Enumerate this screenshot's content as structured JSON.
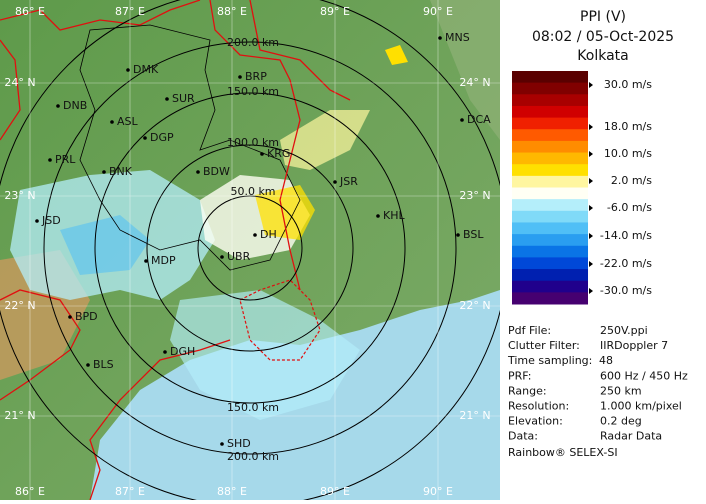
{
  "header": {
    "title": "PPI (V)",
    "time": "08:02 / 05-Oct-2025",
    "station": "Kolkata"
  },
  "legend": {
    "labels": [
      "30.0 m/s",
      "18.0 m/s",
      "10.0 m/s",
      "2.0 m/s",
      "-6.0 m/s",
      "-14.0 m/s",
      "-22.0 m/s",
      "-30.0 m/s"
    ],
    "colors": [
      "#5a0000",
      "#800000",
      "#a80000",
      "#d00000",
      "#f02000",
      "#ff5a00",
      "#ff8c00",
      "#ffb800",
      "#ffe000",
      "#fff6a0",
      "#fffff4",
      "#b4eefa",
      "#80daf8",
      "#50bff6",
      "#2a9ef0",
      "#0a74e6",
      "#0048d8",
      "#0020b0",
      "#20008c",
      "#460070"
    ]
  },
  "info": [
    [
      "Pdf File:",
      "250V.ppi"
    ],
    [
      "Clutter Filter:",
      "IIRDoppler 7"
    ],
    [
      "Time sampling:",
      "48"
    ],
    [
      "PRF:",
      "600 Hz / 450 Hz"
    ],
    [
      "Range:",
      "250 km"
    ],
    [
      "Resolution:",
      "1.000 km/pixel"
    ],
    [
      "Elevation:",
      "0.2 deg"
    ],
    [
      "Data:",
      "Radar Data"
    ]
  ],
  "footer": "Rainbow® SELEX-SI",
  "map": {
    "longitudes": [
      "86° E",
      "87° E",
      "88° E",
      "89° E",
      "90° E"
    ],
    "latitudes": [
      "24° N",
      "23° N",
      "22° N",
      "21° N"
    ],
    "ranges": [
      "200.0 km",
      "150.0 km",
      "100.0 km",
      "50.0 km",
      "150.0 km",
      "200.0 km"
    ],
    "cities": [
      "MNS",
      "DMK",
      "BRP",
      "SUR",
      "DNB",
      "ASL",
      "DCA",
      "DGP",
      "KRG",
      "PRL",
      "BNK",
      "BDW",
      "JSR",
      "JSD",
      "KHL",
      "BSL",
      "MDP",
      "UBR",
      "DH",
      "BPD",
      "BLS",
      "DGH",
      "SHD"
    ]
  }
}
